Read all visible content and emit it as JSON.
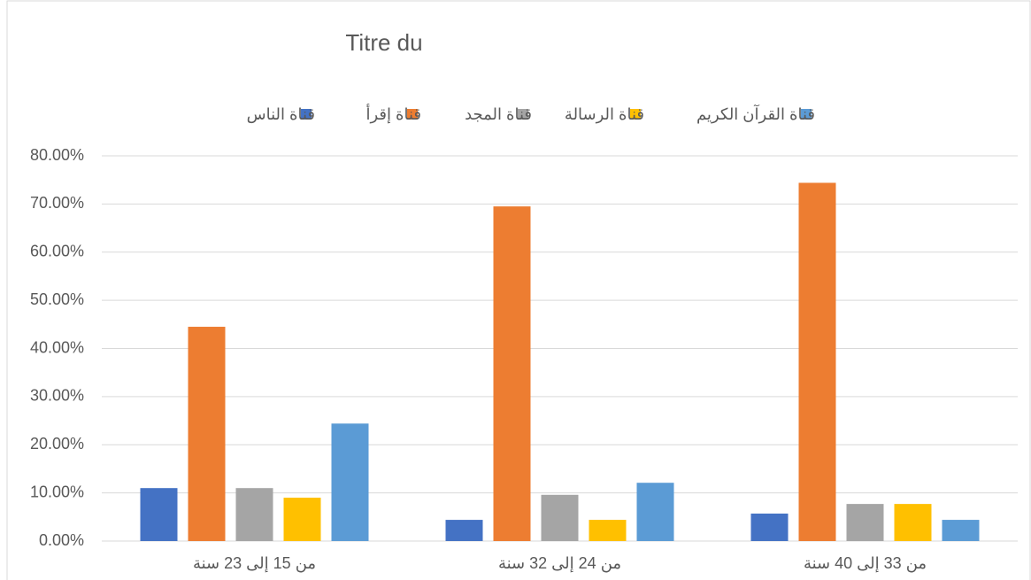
{
  "chart_data": {
    "type": "bar",
    "title": "Titre du",
    "categories": [
      "من 15 إلى 23 سنة",
      "من 24 إلى 32 سنة",
      "من 33 إلى 40 سنة"
    ],
    "series": [
      {
        "name": "قناة الناس",
        "color": "#4472c4",
        "values": [
          11.0,
          4.4,
          5.7
        ]
      },
      {
        "name": "قناة إقرأ",
        "color": "#ed7d31",
        "values": [
          44.5,
          69.5,
          74.4
        ]
      },
      {
        "name": "قناة المجد",
        "color": "#a5a5a5",
        "values": [
          11.0,
          9.6,
          7.7
        ]
      },
      {
        "name": "قناة الرسالة",
        "color": "#ffc000",
        "values": [
          9.0,
          4.4,
          7.7
        ]
      },
      {
        "name": "قناة القرآن الكريم",
        "color": "#5b9bd5",
        "values": [
          24.4,
          12.1,
          4.4
        ]
      }
    ],
    "ylim": [
      0,
      80
    ],
    "yticks": [
      {
        "value": 0,
        "label": "0.00%"
      },
      {
        "value": 10,
        "label": "10.00%"
      },
      {
        "value": 20,
        "label": "20.00%"
      },
      {
        "value": 30,
        "label": "30.00%"
      },
      {
        "value": 40,
        "label": "40.00%"
      },
      {
        "value": 50,
        "label": "50.00%"
      },
      {
        "value": 60,
        "label": "60.00%"
      },
      {
        "value": 70,
        "label": "70.00%"
      },
      {
        "value": 80,
        "label": "80.00%"
      }
    ],
    "grid": true,
    "legend": "top"
  }
}
